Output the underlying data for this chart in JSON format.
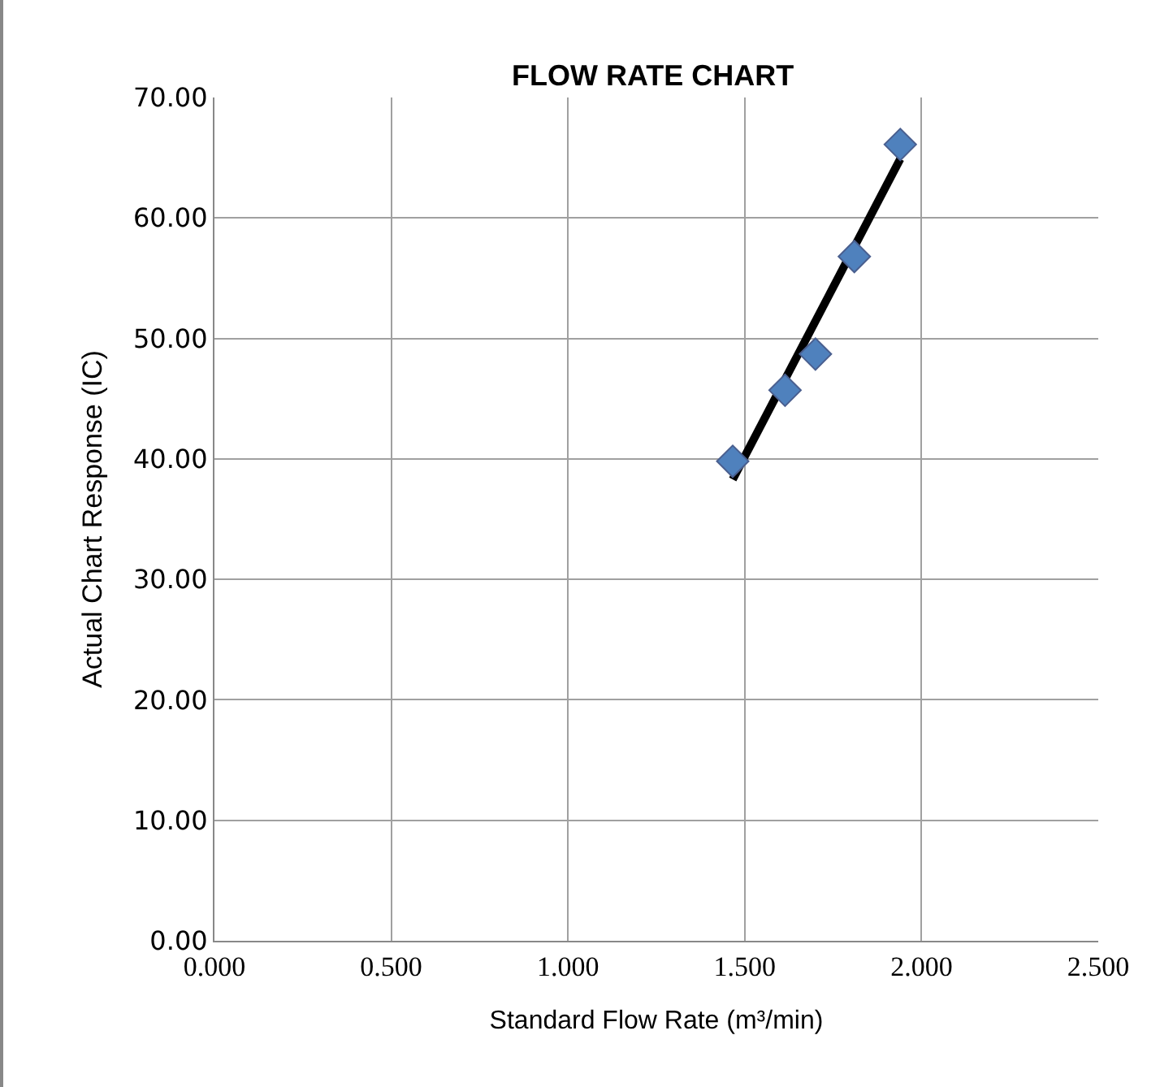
{
  "chart_data": {
    "type": "scatter",
    "title": "FLOW RATE CHART",
    "xlabel": "Standard Flow Rate (m³/min)",
    "ylabel": "Actual Chart Response (IC)",
    "series": [
      {
        "color": "#4f81bd",
        "marker": "diamond",
        "x": [
          1.466,
          1.614,
          1.7,
          1.81,
          1.94
        ],
        "values": [
          39.8,
          45.7,
          48.7,
          56.8,
          66.1
        ]
      },
      {
        "type": "line",
        "color": "#000000",
        "marker": "none",
        "line_style": "solid",
        "x": [
          1.466,
          1.94
        ],
        "values": [
          38.3,
          64.9
        ]
      }
    ],
    "xlim": [
      0,
      2.5
    ],
    "xticks": [
      {
        "value": 0,
        "label": "0.000"
      },
      {
        "value": 0.5,
        "label": "0.500"
      },
      {
        "value": 1,
        "label": "1.000"
      },
      {
        "value": 1.5,
        "label": "1.500"
      },
      {
        "value": 2,
        "label": "2.000"
      },
      {
        "value": 2.5,
        "label": "2.500"
      }
    ],
    "ylim": [
      0,
      70
    ],
    "yticks": [
      {
        "value": 0,
        "label": "0.00"
      },
      {
        "value": 10,
        "label": "10.00"
      },
      {
        "value": 20,
        "label": "20.00"
      },
      {
        "value": 30,
        "label": "30.00"
      },
      {
        "value": 40,
        "label": "40.00"
      },
      {
        "value": 50,
        "label": "50.00"
      },
      {
        "value": 60,
        "label": "60.00"
      },
      {
        "value": 70,
        "label": "70.00"
      }
    ],
    "grid": true
  }
}
